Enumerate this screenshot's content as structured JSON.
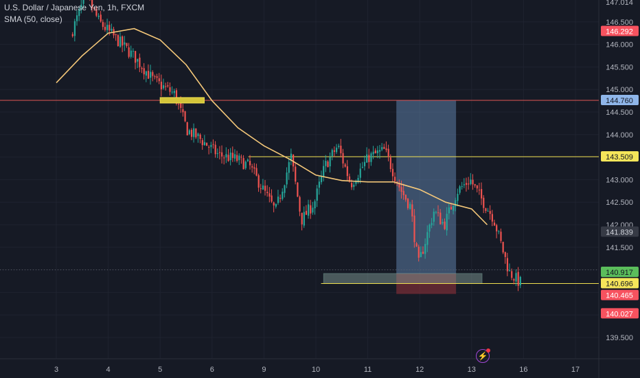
{
  "header": {
    "symbol": "U.S. Dollar / Japanese Yen, 1h, FXCM",
    "indicator": "SMA (50, close)"
  },
  "colors": {
    "background": "#161a25",
    "grid": "#1f2330",
    "bull": "#26a69a",
    "bear": "#ef5350",
    "sma": "#f6c97a",
    "resistance_line": "#e05555",
    "level_line": "#f0e050",
    "target_zone": "#5c7ea6",
    "stop_zone": "#7c2e36",
    "entry_box": "#8aa6a0"
  },
  "icons": {
    "alert": "lightning-bolt-icon"
  },
  "chart_data": {
    "type": "candlestick",
    "title": "U.S. Dollar / Japanese Yen, 1h, FXCM",
    "indicator": "SMA (50, close)",
    "x_ticks": [
      "3",
      "4",
      "5",
      "6",
      "9",
      "10",
      "11",
      "12",
      "13",
      "16",
      "17"
    ],
    "y_ticks": [
      "139.500",
      "140.000",
      "140.500",
      "141.000",
      "141.500",
      "142.000",
      "142.500",
      "143.000",
      "143.500",
      "144.000",
      "144.500",
      "145.000",
      "145.500",
      "146.000",
      "146.500",
      "147.000"
    ],
    "ylim": [
      139.2,
      147.1
    ],
    "price_labels": [
      {
        "value": "147.014",
        "type": "axis"
      },
      {
        "value": "146.292",
        "type": "price-red"
      },
      {
        "value": "144.760",
        "type": "price-blue"
      },
      {
        "value": "143.509",
        "type": "price-yellow"
      },
      {
        "value": "141.839",
        "type": "price-dark"
      },
      {
        "value": "140.917",
        "type": "price-green"
      },
      {
        "value": "140.696",
        "type": "price-yellow"
      },
      {
        "value": "140.465",
        "type": "price-red"
      },
      {
        "value": "140.027",
        "type": "price-red"
      }
    ],
    "horizontal_lines": [
      {
        "price": 144.76,
        "color": "#e05555"
      },
      {
        "price": 143.509,
        "color": "#f0e050"
      },
      {
        "price": 140.696,
        "color": "#f0e050"
      }
    ],
    "path": [
      {
        "day": 2.3,
        "price": 146.2
      },
      {
        "day": 2.6,
        "price": 147.1
      },
      {
        "day": 2.85,
        "price": 146.5
      },
      {
        "day": 3.2,
        "price": 146.1
      },
      {
        "day": 3.55,
        "price": 145.7
      },
      {
        "day": 3.9,
        "price": 145.2
      },
      {
        "day": 4.3,
        "price": 144.9
      },
      {
        "day": 4.55,
        "price": 144.1
      },
      {
        "day": 4.8,
        "price": 143.9
      },
      {
        "day": 5.15,
        "price": 143.55
      },
      {
        "day": 5.5,
        "price": 143.45
      },
      {
        "day": 5.75,
        "price": 143.3
      },
      {
        "day": 6.25,
        "price": 142.3
      },
      {
        "day": 6.55,
        "price": 143.5
      },
      {
        "day": 6.75,
        "price": 142.1
      },
      {
        "day": 7.0,
        "price": 142.5
      },
      {
        "day": 7.2,
        "price": 143.3
      },
      {
        "day": 7.45,
        "price": 143.75
      },
      {
        "day": 7.7,
        "price": 142.9
      },
      {
        "day": 8.05,
        "price": 143.5
      },
      {
        "day": 8.35,
        "price": 143.65
      },
      {
        "day": 8.65,
        "price": 142.8
      },
      {
        "day": 8.85,
        "price": 142.4
      },
      {
        "day": 9.0,
        "price": 141.1
      },
      {
        "day": 9.3,
        "price": 142.3
      },
      {
        "day": 9.5,
        "price": 142.0
      },
      {
        "day": 9.75,
        "price": 142.75
      },
      {
        "day": 10.0,
        "price": 143.0
      },
      {
        "day": 10.2,
        "price": 142.6
      },
      {
        "day": 10.45,
        "price": 142.15
      },
      {
        "day": 10.75,
        "price": 140.95
      },
      {
        "day": 10.95,
        "price": 140.72
      }
    ],
    "sma": [
      {
        "day": 2.0,
        "price": 145.15
      },
      {
        "day": 2.5,
        "price": 145.75
      },
      {
        "day": 3.0,
        "price": 146.25
      },
      {
        "day": 3.5,
        "price": 146.35
      },
      {
        "day": 4.0,
        "price": 146.1
      },
      {
        "day": 4.5,
        "price": 145.55
      },
      {
        "day": 5.0,
        "price": 144.75
      },
      {
        "day": 5.5,
        "price": 144.15
      },
      {
        "day": 6.0,
        "price": 143.75
      },
      {
        "day": 6.5,
        "price": 143.45
      },
      {
        "day": 7.0,
        "price": 143.1
      },
      {
        "day": 7.5,
        "price": 142.98
      },
      {
        "day": 8.0,
        "price": 142.95
      },
      {
        "day": 8.5,
        "price": 142.95
      },
      {
        "day": 9.0,
        "price": 142.78
      },
      {
        "day": 9.5,
        "price": 142.5
      },
      {
        "day": 10.0,
        "price": 142.35
      },
      {
        "day": 10.3,
        "price": 142.0
      }
    ],
    "position_tool": {
      "entry": 140.917,
      "target": 144.76,
      "stop": 140.465,
      "start_day": 8.55,
      "end_day": 9.7
    },
    "support_box": {
      "top": 140.917,
      "bottom": 140.696,
      "start_day": 7.15,
      "end_day": 10.2
    },
    "marker_box": {
      "price": 144.76,
      "start_day": 4.0,
      "end_day": 4.85
    }
  }
}
